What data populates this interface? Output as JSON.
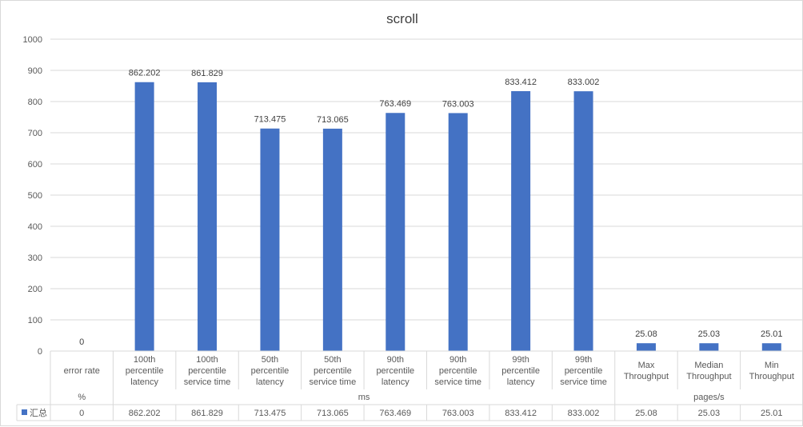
{
  "chart_data": {
    "type": "bar",
    "title": "scroll",
    "ylim": [
      0,
      1000
    ],
    "yticks": [
      "0",
      "100",
      "200",
      "300",
      "400",
      "500",
      "600",
      "700",
      "800",
      "900",
      "1000"
    ],
    "ytick_values": [
      0,
      100,
      200,
      300,
      400,
      500,
      600,
      700,
      800,
      900,
      1000
    ],
    "grid": true,
    "bar_color": "#4472C4",
    "categories": [
      [
        "error rate"
      ],
      [
        "100th",
        "percentile",
        "latency"
      ],
      [
        "100th",
        "percentile",
        "service time"
      ],
      [
        "50th",
        "percentile",
        "latency"
      ],
      [
        "50th",
        "percentile",
        "service time"
      ],
      [
        "90th",
        "percentile",
        "latency"
      ],
      [
        "90th",
        "percentile",
        "service time"
      ],
      [
        "99th",
        "percentile",
        "latency"
      ],
      [
        "99th",
        "percentile",
        "service time"
      ],
      [
        "Max",
        "Throughput"
      ],
      [
        "Median",
        "Throughput"
      ],
      [
        "Min",
        "Throughput"
      ]
    ],
    "unit_groups": [
      {
        "label": "%",
        "count": 1
      },
      {
        "label": "ms",
        "count": 8
      },
      {
        "label": "pages/s",
        "count": 3
      }
    ],
    "series": [
      {
        "name": "汇总",
        "values": [
          0,
          862.202,
          861.829,
          713.475,
          713.065,
          763.469,
          763.003,
          833.412,
          833.002,
          25.08,
          25.03,
          25.01
        ],
        "labels": [
          "0",
          "862.202",
          "861.829",
          "713.475",
          "713.065",
          "763.469",
          "763.003",
          "833.412",
          "833.002",
          "25.08",
          "25.03",
          "25.01"
        ]
      }
    ]
  }
}
